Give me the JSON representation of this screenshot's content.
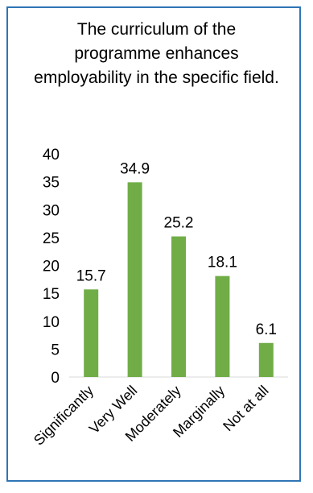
{
  "chart_data": {
    "type": "bar",
    "title": "The curriculum of the programme enhances employability in the specific field.",
    "categories": [
      "Significantly",
      "Very Well",
      "Moderately",
      "Marginally",
      "Not at all"
    ],
    "values": [
      15.7,
      34.9,
      25.2,
      18.1,
      6.1
    ],
    "data_labels": [
      "15.7",
      "34.9",
      "25.2",
      "18.1",
      "6.1"
    ],
    "yticks": [
      "0",
      "5",
      "10",
      "15",
      "20",
      "25",
      "30",
      "35",
      "40"
    ],
    "ylim": [
      0,
      40
    ],
    "grid": false,
    "legend": "none",
    "bar_color": "#70ad47",
    "border_color": "#2f75b5"
  }
}
